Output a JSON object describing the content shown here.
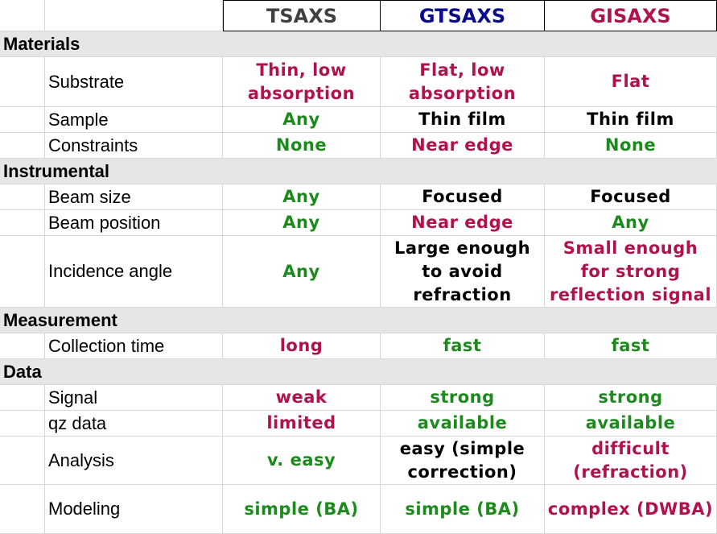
{
  "columns": [
    "TSAXS",
    "GTSAXS",
    "GISAXS"
  ],
  "column_colors": [
    "#404040",
    "#0a0a8c",
    "#b0124e"
  ],
  "sections": [
    {
      "title": "Materials",
      "rows": [
        {
          "label": "Substrate",
          "values": [
            {
              "text": "Thin, low\nabsorption",
              "color": "red"
            },
            {
              "text": "Flat, low\nabsorption",
              "color": "red"
            },
            {
              "text": "Flat",
              "color": "red"
            }
          ]
        },
        {
          "label": "Sample",
          "values": [
            {
              "text": "Any",
              "color": "green"
            },
            {
              "text": "Thin film",
              "color": "black"
            },
            {
              "text": "Thin film",
              "color": "black"
            }
          ]
        },
        {
          "label": "Constraints",
          "values": [
            {
              "text": "None",
              "color": "green"
            },
            {
              "text": "Near edge",
              "color": "red"
            },
            {
              "text": "None",
              "color": "green"
            }
          ]
        }
      ]
    },
    {
      "title": "Instrumental",
      "rows": [
        {
          "label": "Beam size",
          "values": [
            {
              "text": "Any",
              "color": "green"
            },
            {
              "text": "Focused",
              "color": "black"
            },
            {
              "text": "Focused",
              "color": "black"
            }
          ]
        },
        {
          "label": "Beam position",
          "values": [
            {
              "text": "Any",
              "color": "green"
            },
            {
              "text": "Near edge",
              "color": "red"
            },
            {
              "text": "Any",
              "color": "green"
            }
          ]
        },
        {
          "label": "Incidence angle",
          "values": [
            {
              "text": "Any",
              "color": "green"
            },
            {
              "text": "Large enough\nto avoid\nrefraction",
              "color": "black"
            },
            {
              "text": "Small enough\nfor strong\nreflection signal",
              "color": "red"
            }
          ]
        }
      ]
    },
    {
      "title": "Measurement",
      "rows": [
        {
          "label": "Collection time",
          "values": [
            {
              "text": "long",
              "color": "red"
            },
            {
              "text": "fast",
              "color": "green"
            },
            {
              "text": "fast",
              "color": "green"
            }
          ]
        }
      ]
    },
    {
      "title": "Data",
      "rows": [
        {
          "label": "Signal",
          "values": [
            {
              "text": "weak",
              "color": "red"
            },
            {
              "text": "strong",
              "color": "green"
            },
            {
              "text": "strong",
              "color": "green"
            }
          ]
        },
        {
          "label": "qz data",
          "values": [
            {
              "text": "limited",
              "color": "red"
            },
            {
              "text": "available",
              "color": "green"
            },
            {
              "text": "available",
              "color": "green"
            }
          ]
        },
        {
          "label": "Analysis",
          "values": [
            {
              "text": "v. easy",
              "color": "green"
            },
            {
              "text": "easy (simple\ncorrection)",
              "color": "black"
            },
            {
              "text": "difficult\n(refraction)",
              "color": "red"
            }
          ]
        },
        {
          "label": "Modeling",
          "values": [
            {
              "text": "simple (BA)",
              "color": "green"
            },
            {
              "text": "simple (BA)",
              "color": "green"
            },
            {
              "text": "complex (DWBA)",
              "color": "red"
            }
          ]
        }
      ]
    }
  ]
}
